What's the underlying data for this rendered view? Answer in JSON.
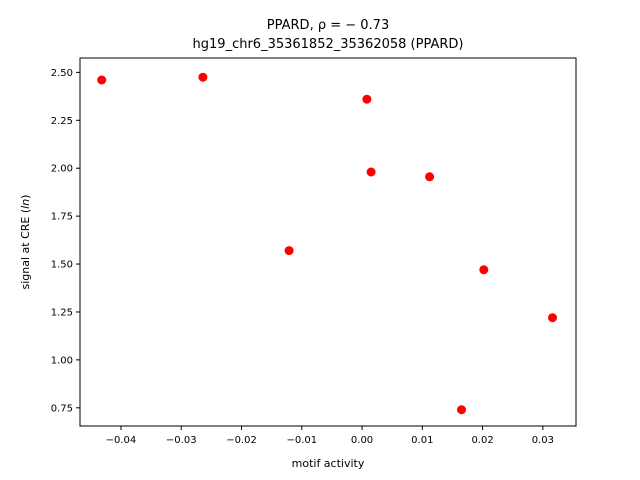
{
  "chart_data": {
    "type": "scatter",
    "title_line1": "PPARD, ρ = − 0.73",
    "title_line2": "hg19_chr6_35361852_35362058 (PPARD)",
    "xlabel": "motif activity",
    "ylabel_pre": "signal at CRE (",
    "ylabel_ital": "ln",
    "ylabel_post": ")",
    "xlim": [
      -0.0468,
      0.0355
    ],
    "ylim": [
      0.655,
      2.575
    ],
    "xticks": [
      -0.04,
      -0.03,
      -0.02,
      -0.01,
      0.0,
      0.01,
      0.02,
      0.03
    ],
    "xtick_labels": [
      "−0.04",
      "−0.03",
      "−0.02",
      "−0.01",
      "0.00",
      "0.01",
      "0.02",
      "0.03"
    ],
    "yticks": [
      0.75,
      1.0,
      1.25,
      1.5,
      1.75,
      2.0,
      2.25,
      2.5
    ],
    "ytick_labels": [
      "0.75",
      "1.00",
      "1.25",
      "1.50",
      "1.75",
      "2.00",
      "2.25",
      "2.50"
    ],
    "marker_color": "#ff0000",
    "grid": false,
    "points": [
      {
        "x": -0.0432,
        "y": 2.46
      },
      {
        "x": -0.0264,
        "y": 2.475
      },
      {
        "x": -0.0121,
        "y": 1.57
      },
      {
        "x": 0.0008,
        "y": 2.36
      },
      {
        "x": 0.0015,
        "y": 1.98
      },
      {
        "x": 0.0112,
        "y": 1.955
      },
      {
        "x": 0.0202,
        "y": 1.47
      },
      {
        "x": 0.0165,
        "y": 0.74
      },
      {
        "x": 0.0316,
        "y": 1.22
      }
    ]
  }
}
